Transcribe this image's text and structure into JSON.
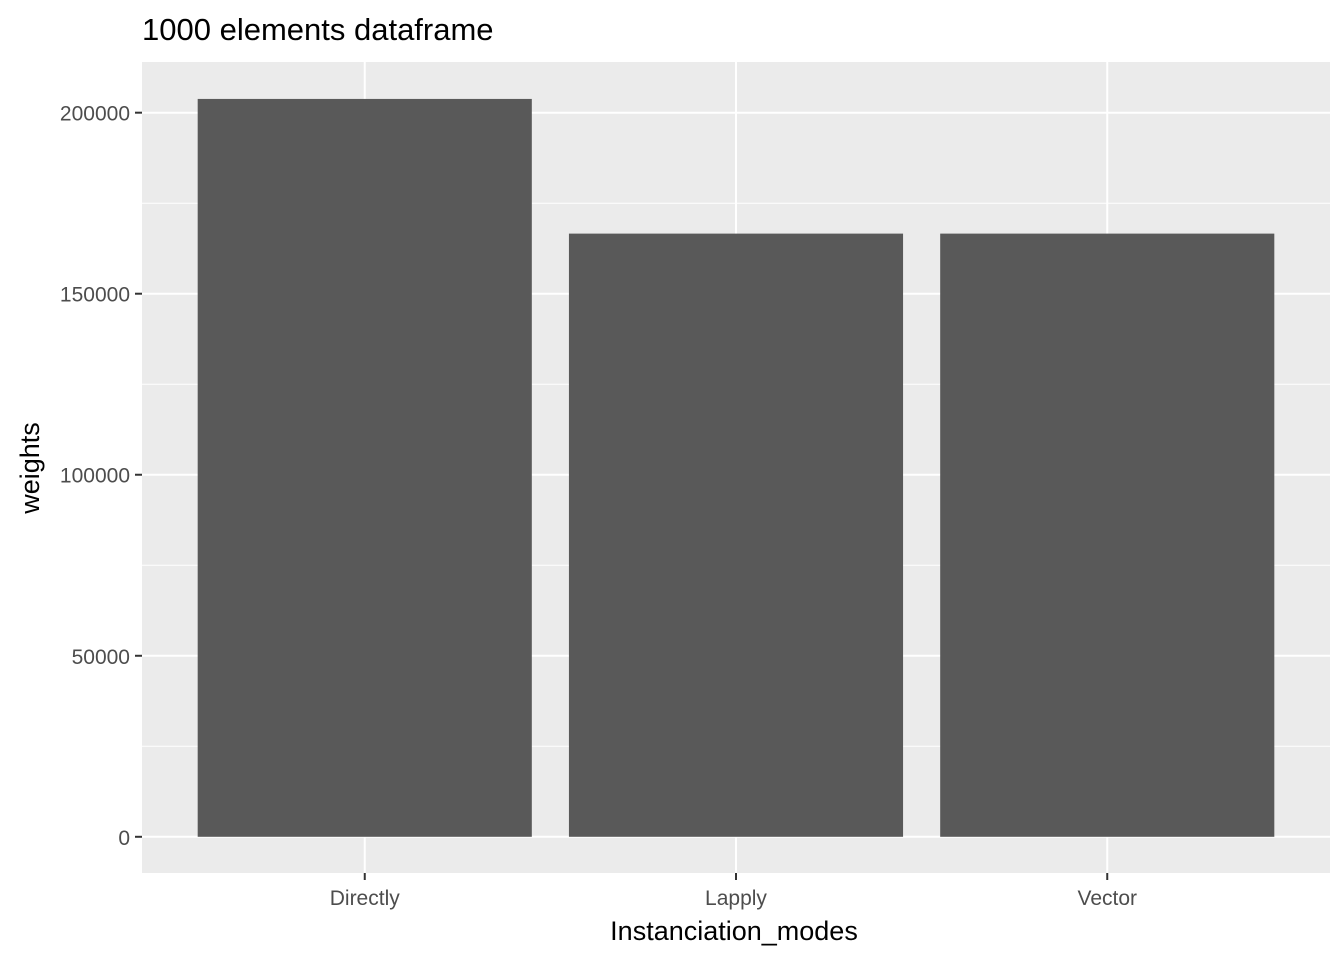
{
  "chart_data": {
    "type": "bar",
    "title": "1000  elements  dataframe",
    "xlabel": "Instanciation_modes",
    "ylabel": "weights",
    "categories": [
      "Directly",
      "Lapply",
      "Vector"
    ],
    "values": [
      203800,
      166600,
      166600
    ],
    "ylim": [
      -10000,
      214000
    ],
    "yticks": [
      0,
      50000,
      100000,
      150000,
      200000
    ],
    "ytick_labels": [
      "0",
      "50000",
      "100000",
      "150000",
      "200000"
    ],
    "grid": true,
    "legend": "none",
    "colors": {
      "panel_background": "#ebebeb",
      "grid": "#ffffff",
      "bar_fill": "#595959",
      "tick": "#333333",
      "tick_label": "#4d4d4d",
      "text": "#000000"
    }
  }
}
